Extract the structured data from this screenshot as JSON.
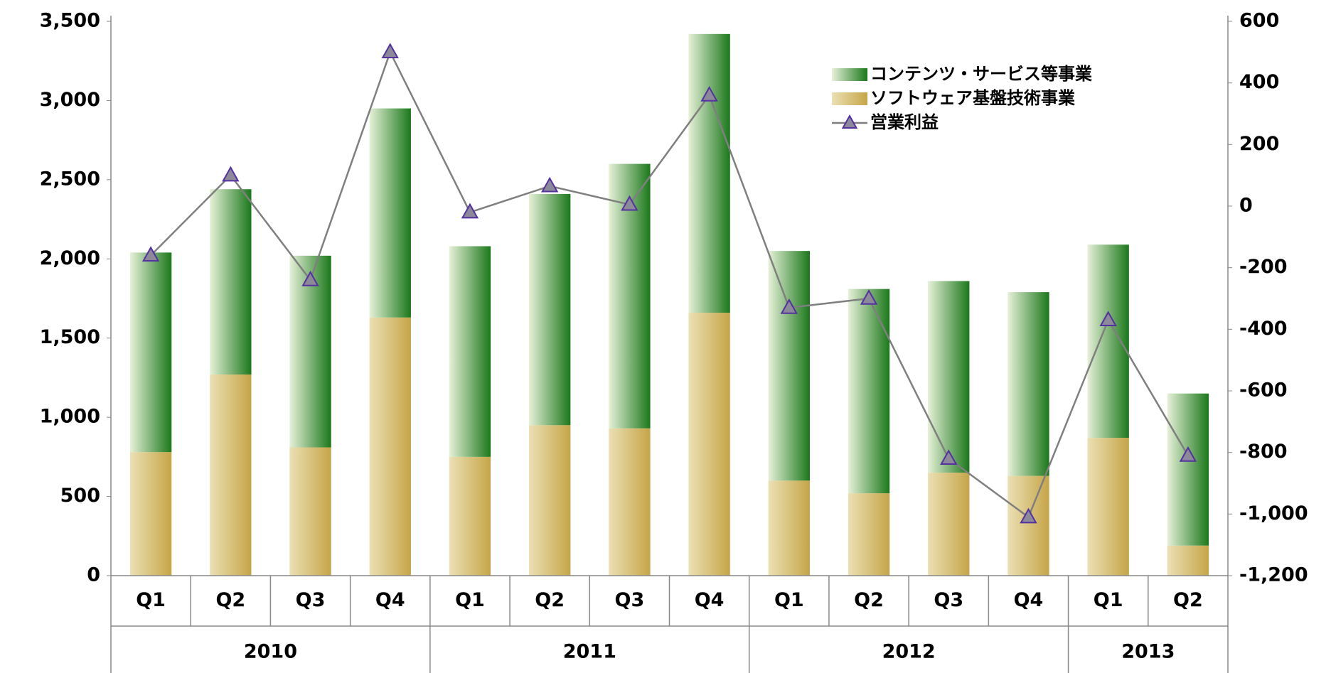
{
  "chart_data": {
    "type": "bar",
    "category_groups": [
      {
        "name": "2010",
        "categories": [
          "Q1",
          "Q2",
          "Q3",
          "Q4"
        ]
      },
      {
        "name": "2011",
        "categories": [
          "Q1",
          "Q2",
          "Q3",
          "Q4"
        ]
      },
      {
        "name": "2012",
        "categories": [
          "Q1",
          "Q2",
          "Q3",
          "Q4"
        ]
      },
      {
        "name": "2013",
        "categories": [
          "Q1",
          "Q2"
        ]
      }
    ],
    "series": [
      {
        "name": "コンテンツ・サービス等事業",
        "type": "bar",
        "color": [
          "#e6f1d8",
          "#1b781b"
        ],
        "values": [
          1260,
          1170,
          1210,
          1320,
          1330,
          1460,
          1670,
          1760,
          1450,
          1290,
          1210,
          1160,
          1220,
          960
        ]
      },
      {
        "name": "ソフトウェア基盤技術事業",
        "type": "bar",
        "color": [
          "#ebe0b4",
          "#c6a548"
        ],
        "values": [
          780,
          1270,
          810,
          1630,
          750,
          950,
          930,
          1660,
          600,
          520,
          650,
          630,
          870,
          190
        ]
      },
      {
        "name": "営業利益",
        "type": "line",
        "axis": "y2",
        "color": "#7f7f7f",
        "marker_fill": "#8c8a98",
        "marker_edge": "#5530a0",
        "values": [
          -160,
          100,
          -240,
          500,
          -20,
          65,
          5,
          360,
          -330,
          -300,
          -820,
          -1010,
          -370,
          -810
        ]
      }
    ],
    "ylim": [
      0,
      3500
    ],
    "yticks": [
      0,
      500,
      {
        "value": 1000,
        "label": "1,000"
      },
      {
        "value": 1500,
        "label": "1,500"
      },
      {
        "value": 2000,
        "label": "2,000"
      },
      {
        "value": 2500,
        "label": "2,500"
      },
      {
        "value": 3000,
        "label": "3,000"
      },
      {
        "value": 3500,
        "label": "3,500"
      }
    ],
    "y2lim": [
      -1200,
      600
    ],
    "y2ticks": [
      {
        "value": -1200,
        "label": "-1,200"
      },
      {
        "value": -1000,
        "label": "-1,000"
      },
      -800,
      -600,
      -400,
      -200,
      0,
      200,
      400,
      600
    ],
    "grid": false,
    "legend": "upper right"
  }
}
